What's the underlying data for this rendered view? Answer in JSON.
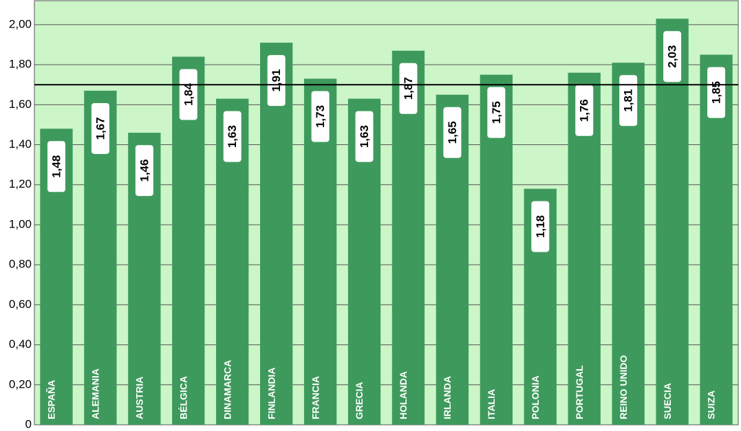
{
  "chart_data": {
    "type": "bar",
    "categories": [
      "ESPAÑA",
      "ALEMANIA",
      "AUSTRIA",
      "BÉLGICA",
      "DINAMARCA",
      "FINLANDIA",
      "FRANCIA",
      "GRECIA",
      "HOLANDA",
      "IRLANDA",
      "ITALIA",
      "POLONIA",
      "PORTUGAL",
      "REINO UNIDO",
      "SUECIA",
      "SUIZA"
    ],
    "values": [
      1.48,
      1.67,
      1.46,
      1.84,
      1.63,
      1.91,
      1.73,
      1.63,
      1.87,
      1.65,
      1.75,
      1.18,
      1.76,
      1.81,
      2.03,
      1.85
    ],
    "value_labels": [
      "1,48",
      "1,67",
      "1,46",
      "1,84",
      "1,63",
      "1,91",
      "1,73",
      "1,63",
      "1,87",
      "1,65",
      "1,75",
      "1,18",
      "1,76",
      "1,81",
      "2,03",
      "1,85"
    ],
    "color": "#3e9a5c",
    "ylim": [
      0,
      2.12
    ],
    "yticks": [
      0,
      {
        "value": 0.2,
        "label": "0,20"
      },
      {
        "value": 0.4,
        "label": "0,40"
      },
      {
        "value": 0.6,
        "label": "0,60"
      },
      {
        "value": 0.8,
        "label": "0,80"
      },
      {
        "value": 1.0,
        "label": "1,00"
      },
      {
        "value": 1.2,
        "label": "1,20"
      },
      {
        "value": 1.4,
        "label": "1,40"
      },
      {
        "value": 1.6,
        "label": "1,60"
      },
      {
        "value": 1.8,
        "label": "1,80"
      },
      {
        "value": 2.0,
        "label": "2,00"
      }
    ],
    "reference_line": 1.7,
    "grid": true
  }
}
